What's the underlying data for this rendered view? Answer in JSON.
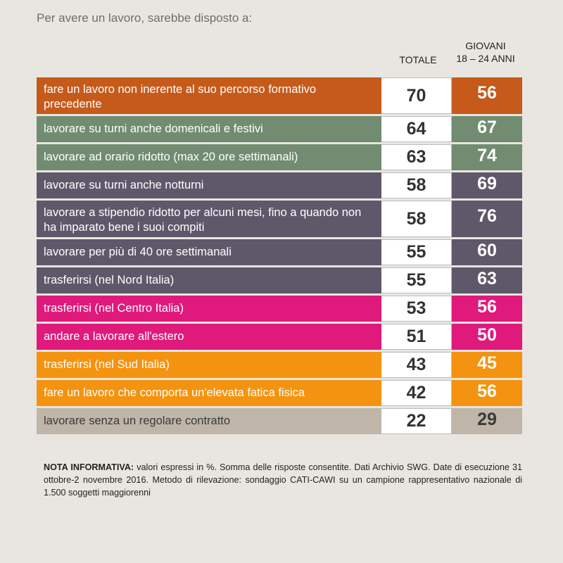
{
  "title": "Per avere un lavoro, sarebbe disposto a:",
  "columns": {
    "totale": "TOTALE",
    "giovani_line1": "GIOVANI",
    "giovani_line2": "18 – 24 ANNI"
  },
  "colors": {
    "rust": "#c55a1b",
    "green": "#718c71",
    "slate": "#5f586a",
    "magenta": "#e0197d",
    "orange": "#f4930f",
    "taupe": "#bfb5a9"
  },
  "chart_data": {
    "type": "table",
    "title": "Per avere un lavoro, sarebbe disposto a:",
    "series": [
      {
        "name": "TOTALE",
        "values": [
          70,
          64,
          63,
          58,
          58,
          55,
          55,
          53,
          51,
          43,
          42,
          22
        ]
      },
      {
        "name": "GIOVANI 18 – 24 ANNI",
        "values": [
          56,
          67,
          74,
          69,
          76,
          60,
          63,
          56,
          50,
          45,
          56,
          29
        ]
      }
    ],
    "rows": [
      {
        "label": "fare un lavoro non inerente al suo percorso formativo precedente",
        "totale": "70",
        "giovani": "56",
        "color": "#c55a1b"
      },
      {
        "label": "lavorare su turni anche domenicali e festivi",
        "totale": "64",
        "giovani": "67",
        "color": "#718c71"
      },
      {
        "label": "lavorare ad orario ridotto (max 20 ore settimanali)",
        "totale": "63",
        "giovani": "74",
        "color": "#718c71"
      },
      {
        "label": "lavorare su turni anche notturni",
        "totale": "58",
        "giovani": "69",
        "color": "#5f586a"
      },
      {
        "label": "lavorare a stipendio ridotto per alcuni mesi, fino a quando non ha imparato bene i suoi compiti",
        "totale": "58",
        "giovani": "76",
        "color": "#5f586a"
      },
      {
        "label": "lavorare per più di 40 ore settimanali",
        "totale": "55",
        "giovani": "60",
        "color": "#5f586a"
      },
      {
        "label": "trasferirsi (nel Nord Italia)",
        "totale": "55",
        "giovani": "63",
        "color": "#5f586a"
      },
      {
        "label": "trasferirsi (nel Centro Italia)",
        "totale": "53",
        "giovani": "56",
        "color": "#e0197d"
      },
      {
        "label": "andare a lavorare all'estero",
        "totale": "51",
        "giovani": "50",
        "color": "#e0197d"
      },
      {
        "label": "trasferirsi (nel Sud Italia)",
        "totale": "43",
        "giovani": "45",
        "color": "#f4930f"
      },
      {
        "label": "fare un lavoro che comporta un'elevata fatica fisica",
        "totale": "42",
        "giovani": "56",
        "color": "#f4930f"
      },
      {
        "label": "lavorare senza un regolare contratto",
        "totale": "22",
        "giovani": "29",
        "color": "#bfb5a9",
        "label_color": "#3a3a3a",
        "value_color": "#3a3a3a"
      }
    ]
  },
  "note": {
    "heading": "NOTA INFORMATIVA:",
    "text": " valori espressi in %. Somma delle risposte consentite. Dati Archivio SWG. Date di esecuzione 31 ottobre-2 novembre 2016. Metodo di rilevazione: sondaggio CATI-CAWI su un campione rappresentativo nazionale di 1.500 soggetti maggiorenni"
  }
}
